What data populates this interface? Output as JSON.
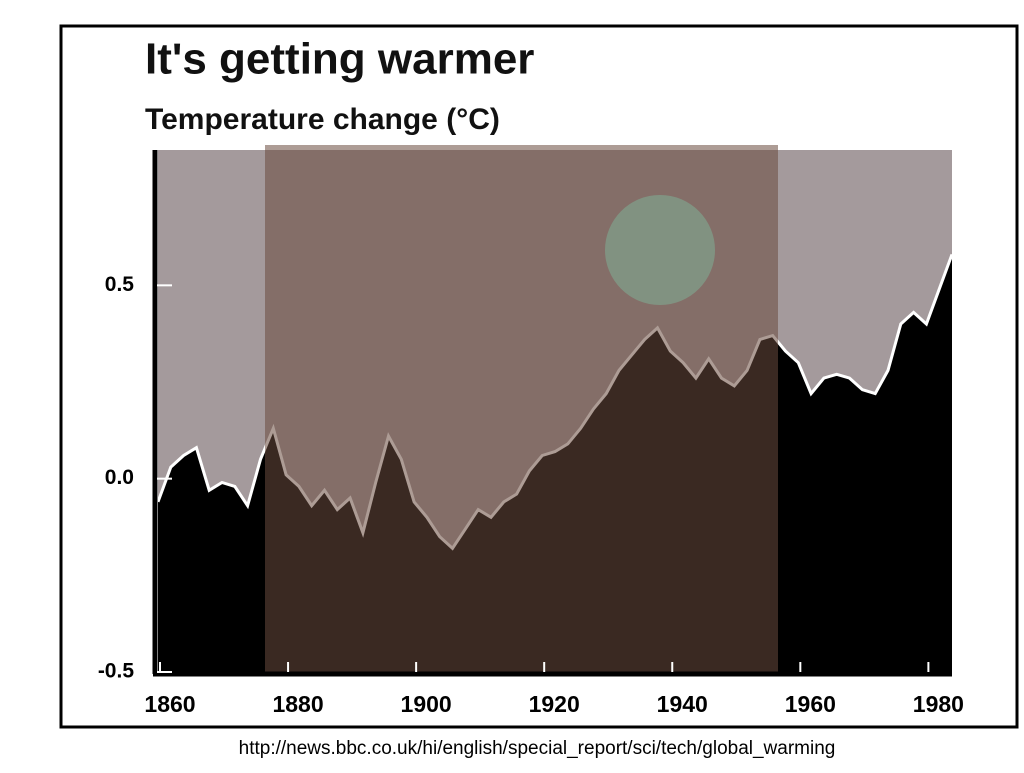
{
  "chart_data": {
    "type": "area",
    "title": "It's getting warmer",
    "subtitle": "Temperature change (°C)",
    "source": "http://news.bbc.co.uk/hi/english/special_report/sci/tech/global_warming",
    "x": [
      1860,
      1862,
      1864,
      1866,
      1868,
      1870,
      1872,
      1874,
      1876,
      1878,
      1880,
      1882,
      1884,
      1886,
      1888,
      1890,
      1892,
      1894,
      1896,
      1898,
      1900,
      1902,
      1904,
      1906,
      1908,
      1910,
      1912,
      1914,
      1916,
      1918,
      1920,
      1922,
      1924,
      1926,
      1928,
      1930,
      1932,
      1934,
      1936,
      1938,
      1940,
      1942,
      1944,
      1946,
      1948,
      1950,
      1952,
      1954,
      1956,
      1958,
      1960,
      1962,
      1964,
      1966,
      1968,
      1970,
      1972,
      1974,
      1976,
      1978,
      1980,
      1982,
      1984
    ],
    "values": [
      -0.06,
      0.03,
      0.06,
      0.08,
      -0.03,
      -0.01,
      -0.02,
      -0.07,
      0.05,
      0.13,
      0.01,
      -0.02,
      -0.07,
      -0.03,
      -0.08,
      -0.05,
      -0.14,
      -0.01,
      0.11,
      0.05,
      -0.06,
      -0.1,
      -0.15,
      -0.18,
      -0.13,
      -0.08,
      -0.1,
      -0.06,
      -0.04,
      0.02,
      0.06,
      0.07,
      0.09,
      0.13,
      0.18,
      0.22,
      0.28,
      0.32,
      0.36,
      0.39,
      0.33,
      0.3,
      0.26,
      0.31,
      0.26,
      0.24,
      0.28,
      0.36,
      0.37,
      0.33,
      0.3,
      0.22,
      0.26,
      0.27,
      0.26,
      0.23,
      0.22,
      0.28,
      0.4,
      0.43,
      0.4,
      0.49,
      0.58
    ],
    "color": "#000000",
    "line_color": "#ffffff",
    "background": "#a49a9c",
    "xlim": [
      1860,
      1984
    ],
    "xticks": [
      1860,
      1880,
      1900,
      1920,
      1940,
      1960,
      1980
    ],
    "ylim": [
      -0.5,
      0.85
    ],
    "yticks": [
      -0.5,
      {
        "value": 0,
        "label": "0.0"
      },
      0.5
    ]
  }
}
